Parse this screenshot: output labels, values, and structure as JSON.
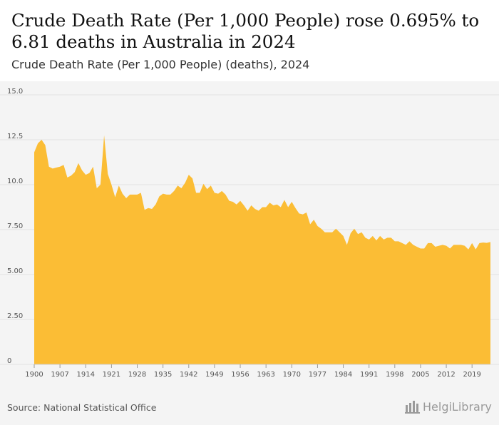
{
  "header": {
    "title": "Crude Death Rate (Per 1,000 People) rose 0.695% to 6.81 deaths in Australia in 2024",
    "subtitle": "Crude Death Rate (Per 1,000 People) (deaths), 2024"
  },
  "footer": {
    "source": "Source: National Statistical Office",
    "brand": "HelgiLibrary"
  },
  "colors": {
    "area_fill": "#fbbd35",
    "grid": "#e2e2e2",
    "axis_text": "#555555"
  },
  "chart_data": {
    "type": "area",
    "title": "Crude Death Rate (Per 1,000 People) rose 0.695% to 6.81 deaths in Australia in 2024",
    "subtitle": "Crude Death Rate (Per 1,000 People) (deaths), 2024",
    "xlabel": "",
    "ylabel": "",
    "xlim": [
      1900,
      2024
    ],
    "ylim": [
      0,
      15
    ],
    "y_ticks": [
      0,
      2.5,
      5,
      7.5,
      10,
      12.5,
      15
    ],
    "y_tick_labels": [
      "0",
      "2.50",
      "5.00",
      "7.50",
      "10.0",
      "12.5",
      "15.0"
    ],
    "x_ticks": [
      1900,
      1907,
      1914,
      1921,
      1928,
      1935,
      1942,
      1949,
      1956,
      1963,
      1970,
      1977,
      1984,
      1991,
      1998,
      2005,
      2012,
      2019
    ],
    "grid": true,
    "series": [
      {
        "name": "Crude Death Rate (Per 1,000 People)",
        "x": [
          1900,
          1901,
          1902,
          1903,
          1904,
          1905,
          1906,
          1907,
          1908,
          1909,
          1910,
          1911,
          1912,
          1913,
          1914,
          1915,
          1916,
          1917,
          1918,
          1919,
          1920,
          1921,
          1922,
          1923,
          1924,
          1925,
          1926,
          1927,
          1928,
          1929,
          1930,
          1931,
          1932,
          1933,
          1934,
          1935,
          1936,
          1937,
          1938,
          1939,
          1940,
          1941,
          1942,
          1943,
          1944,
          1945,
          1946,
          1947,
          1948,
          1949,
          1950,
          1951,
          1952,
          1953,
          1954,
          1955,
          1956,
          1957,
          1958,
          1959,
          1960,
          1961,
          1962,
          1963,
          1964,
          1965,
          1966,
          1967,
          1968,
          1969,
          1970,
          1971,
          1972,
          1973,
          1974,
          1975,
          1976,
          1977,
          1978,
          1979,
          1980,
          1981,
          1982,
          1983,
          1984,
          1985,
          1986,
          1987,
          1988,
          1989,
          1990,
          1991,
          1992,
          1993,
          1994,
          1995,
          1996,
          1997,
          1998,
          1999,
          2000,
          2001,
          2002,
          2003,
          2004,
          2005,
          2006,
          2007,
          2008,
          2009,
          2010,
          2011,
          2012,
          2013,
          2014,
          2015,
          2016,
          2017,
          2018,
          2019,
          2020,
          2021,
          2022,
          2023,
          2024
        ],
        "values": [
          11.8,
          12.3,
          12.5,
          12.2,
          11.0,
          10.9,
          10.95,
          11.0,
          11.1,
          10.4,
          10.5,
          10.7,
          11.2,
          10.8,
          10.55,
          10.65,
          11.0,
          9.8,
          10.0,
          12.75,
          10.6,
          10.0,
          9.3,
          9.95,
          9.5,
          9.25,
          9.45,
          9.45,
          9.45,
          9.55,
          8.6,
          8.7,
          8.65,
          8.9,
          9.35,
          9.5,
          9.45,
          9.45,
          9.65,
          9.95,
          9.8,
          10.1,
          10.55,
          10.35,
          9.55,
          9.55,
          10.05,
          9.75,
          9.95,
          9.55,
          9.5,
          9.65,
          9.45,
          9.1,
          9.05,
          8.9,
          9.1,
          8.85,
          8.55,
          8.85,
          8.65,
          8.55,
          8.75,
          8.75,
          9.0,
          8.85,
          8.9,
          8.75,
          9.15,
          8.75,
          9.05,
          8.7,
          8.4,
          8.35,
          8.45,
          7.8,
          8.05,
          7.7,
          7.55,
          7.35,
          7.35,
          7.35,
          7.55,
          7.35,
          7.15,
          6.65,
          7.3,
          7.55,
          7.25,
          7.35,
          7.05,
          6.95,
          7.15,
          6.9,
          7.15,
          6.95,
          7.05,
          7.05,
          6.85,
          6.85,
          6.75,
          6.65,
          6.85,
          6.65,
          6.55,
          6.45,
          6.45,
          6.75,
          6.75,
          6.55,
          6.6,
          6.65,
          6.6,
          6.45,
          6.65,
          6.65,
          6.65,
          6.6,
          6.4,
          6.75,
          6.4,
          6.75,
          6.78,
          6.76,
          6.81
        ]
      }
    ]
  }
}
